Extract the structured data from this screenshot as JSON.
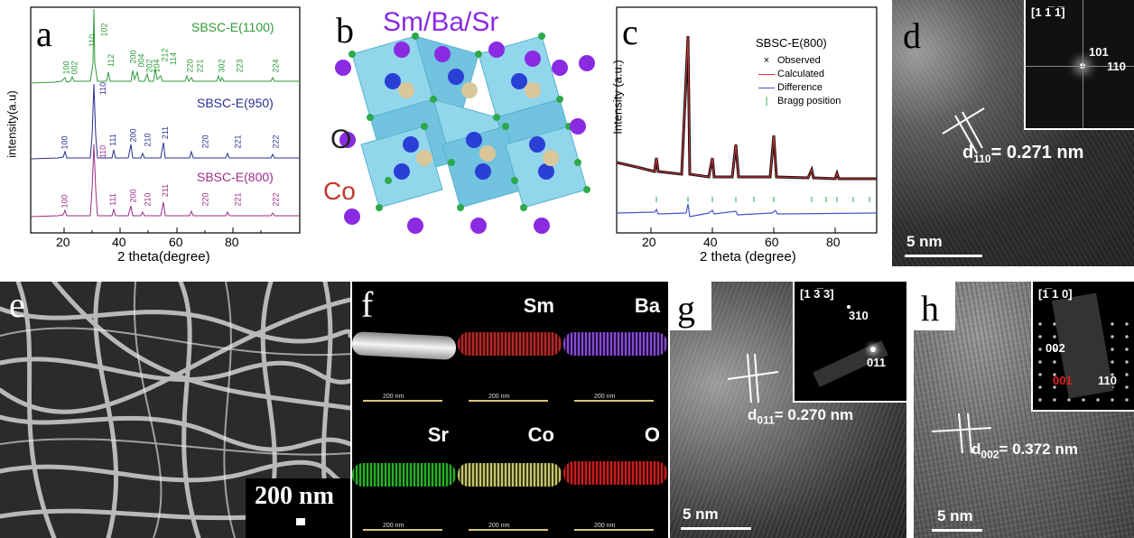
{
  "panels": {
    "a": {
      "label": "a",
      "ylabel": "intensity(a.u)",
      "xlabel": "2 theta(degree)",
      "xticks": [
        "20",
        "40",
        "60",
        "80"
      ],
      "series_labels": [
        "SBSC-E(1100)",
        "SBSC-E(950)",
        "SBSC-E(800)"
      ],
      "colors": {
        "s1100": "#2e9a3a",
        "s950": "#2b2f8f",
        "s800": "#9a2d8a"
      },
      "peaks_1100": [
        "100",
        "002",
        "110",
        "102",
        "112",
        "200",
        "004",
        "202",
        "104",
        "212",
        "114",
        "220",
        "221",
        "302",
        "223",
        "224"
      ],
      "peaks_950": [
        "100",
        "110",
        "111",
        "200",
        "210",
        "211",
        "220",
        "221",
        "222"
      ],
      "peaks_800": [
        "100",
        "110",
        "111",
        "200",
        "210",
        "211",
        "220",
        "221",
        "222"
      ]
    },
    "b": {
      "label": "b",
      "title": "Sm/Ba/Sr",
      "atom_o": "O",
      "atom_co": "Co"
    },
    "c": {
      "label": "c",
      "ylabel": "Intensity (a.u.)",
      "xlabel": "2 theta (degree)",
      "xticks": [
        "20",
        "40",
        "60",
        "80"
      ],
      "legend_title": "SBSC-E(800)",
      "legend": [
        "Observed",
        "Calculated",
        "Difference",
        "Bragg position"
      ]
    },
    "d": {
      "label": "d",
      "zone_axis": "[1 1̅ 1̅]",
      "spots": [
        "101",
        "110"
      ],
      "spacing_prefix": "d",
      "spacing_sub": "110",
      "spacing_value": "= 0.271 nm",
      "scale": "5 nm"
    },
    "e": {
      "label": "e",
      "scale": "200 nm"
    },
    "f": {
      "label": "f",
      "tiles": [
        "",
        "Sm",
        "Ba",
        "Sr",
        "Co",
        "O"
      ],
      "tile_scale": "200 nm"
    },
    "g": {
      "label": "g",
      "zone_axis": "[1 3̅ 3]",
      "spots": [
        "310",
        "011"
      ],
      "spacing_prefix": "d",
      "spacing_sub": "011",
      "spacing_value": "= 0.270 nm",
      "scale": "5 nm"
    },
    "h": {
      "label": "h",
      "zone_axis": "[1̅ 1 0]",
      "spots": [
        "002",
        "001",
        "110"
      ],
      "spacing_prefix": "d",
      "spacing_sub": "002",
      "spacing_value": "= 0.372 nm",
      "scale": "5 nm"
    }
  }
}
